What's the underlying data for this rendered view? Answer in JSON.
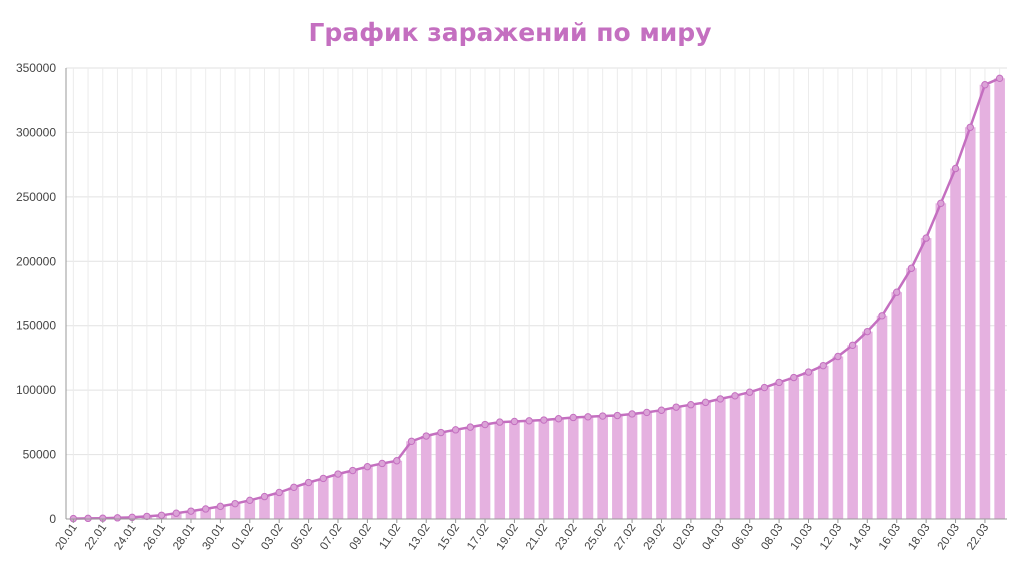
{
  "chart_data": {
    "type": "bar",
    "title": "График заражений по миру",
    "xlabel": "",
    "ylabel": "",
    "ylim": [
      0,
      350000
    ],
    "yticks": [
      "0",
      "50000",
      "100000",
      "150000",
      "200000",
      "250000",
      "300000",
      "350000"
    ],
    "grid": true,
    "categories": [
      "20.01",
      "21.01",
      "22.01",
      "23.01",
      "24.01",
      "25.01",
      "26.01",
      "27.01",
      "28.01",
      "29.01",
      "30.01",
      "31.01",
      "01.02",
      "02.02",
      "03.02",
      "04.02",
      "05.02",
      "06.02",
      "07.02",
      "08.02",
      "09.02",
      "10.02",
      "11.02",
      "12.02",
      "13.02",
      "14.02",
      "15.02",
      "16.02",
      "17.02",
      "18.02",
      "19.02",
      "20.02",
      "21.02",
      "22.02",
      "23.02",
      "24.02",
      "25.02",
      "26.02",
      "27.02",
      "28.02",
      "29.02",
      "01.03",
      "02.03",
      "03.03",
      "04.03",
      "05.03",
      "06.03",
      "07.03",
      "08.03",
      "09.03",
      "10.03",
      "11.03",
      "12.03",
      "13.03",
      "14.03",
      "15.03",
      "16.03",
      "17.03",
      "18.03",
      "19.03",
      "20.03",
      "21.03",
      "22.03",
      "23.03"
    ],
    "tick_labels": [
      "20.01",
      "22.01",
      "24.01",
      "26.01",
      "28.01",
      "30.01",
      "01.02",
      "03.02",
      "05.02",
      "07.02",
      "09.02",
      "11.02",
      "13.02",
      "15.02",
      "17.02",
      "19.02",
      "21.02",
      "23.02",
      "25.02",
      "27.02",
      "29.02",
      "02.03",
      "04.03",
      "06.03",
      "08.03",
      "10.03",
      "12.03",
      "14.03",
      "16.03",
      "18.03",
      "20.03",
      "22.03"
    ],
    "series": [
      {
        "values": [
          300,
          500,
          600,
          900,
          1300,
          2000,
          2900,
          4500,
          6100,
          7800,
          9800,
          11900,
          14500,
          17400,
          20600,
          24600,
          28300,
          31500,
          34900,
          37600,
          40600,
          43100,
          45200,
          60300,
          64400,
          67100,
          69200,
          71300,
          73300,
          75200,
          75700,
          76200,
          76800,
          77800,
          78800,
          79300,
          79900,
          80300,
          81500,
          82700,
          84400,
          86800,
          88700,
          90500,
          93200,
          95600,
          98400,
          102000,
          106000,
          109800,
          114000,
          119000,
          126100,
          134800,
          145400,
          157700,
          176000,
          194600,
          218000,
          245000,
          272000,
          304000,
          337000,
          342000
        ]
      }
    ],
    "colors": {
      "bar": "#e5b1e0",
      "line": "#c46fc0",
      "title": "#c46fc0"
    }
  }
}
